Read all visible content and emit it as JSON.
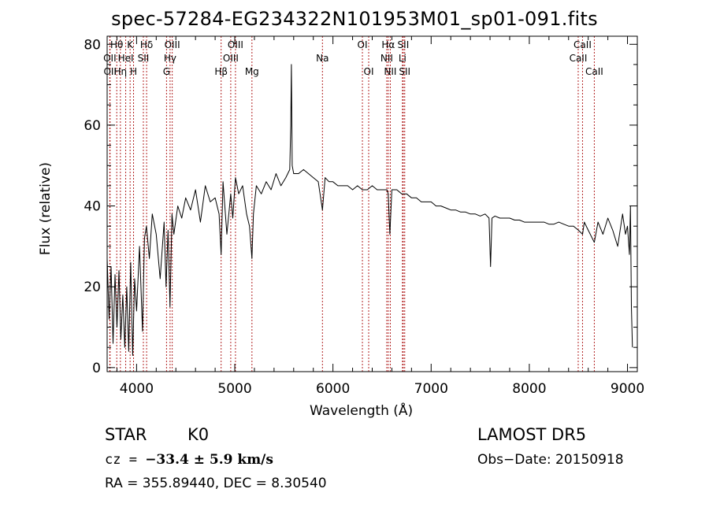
{
  "header": {
    "title": "spec-57284-EG234322N101953M01_sp01-091.fits"
  },
  "footer": {
    "object_class": "STAR",
    "subclass": "K0",
    "survey": "LAMOST DR5",
    "cz_label": "cz = ",
    "cz_value": "−33.4 ± 5.9 km/s",
    "obs_date": "Obs−Date: 20150918",
    "radec": "RA = 355.89440, DEC =   8.30540"
  },
  "colors": {
    "line_marker": "#b22222",
    "spectrum": "#000000",
    "axes": "#000000"
  },
  "chart_data": {
    "type": "line",
    "title": "spec-57284-EG234322N101953M01_sp01-091.fits",
    "xlabel": "Wavelength (Å)",
    "ylabel": "Flux (relative)",
    "xlim": [
      3700,
      9100
    ],
    "ylim": [
      -1,
      82
    ],
    "xticks": [
      4000,
      5000,
      6000,
      7000,
      8000,
      9000
    ],
    "yticks": [
      0,
      20,
      40,
      60,
      80
    ],
    "grid": false,
    "spectrum": {
      "x": [
        3700,
        3720,
        3740,
        3760,
        3780,
        3800,
        3820,
        3840,
        3860,
        3880,
        3900,
        3920,
        3940,
        3960,
        3980,
        4000,
        4030,
        4060,
        4080,
        4100,
        4130,
        4160,
        4200,
        4240,
        4280,
        4300,
        4320,
        4340,
        4360,
        4380,
        4420,
        4460,
        4500,
        4550,
        4600,
        4650,
        4700,
        4750,
        4800,
        4840,
        4861,
        4880,
        4920,
        4959,
        4980,
        5007,
        5040,
        5080,
        5120,
        5150,
        5175,
        5190,
        5220,
        5270,
        5320,
        5370,
        5420,
        5470,
        5520,
        5560,
        5570,
        5577,
        5585,
        5600,
        5650,
        5700,
        5750,
        5800,
        5850,
        5893,
        5920,
        5960,
        6000,
        6050,
        6100,
        6150,
        6200,
        6250,
        6300,
        6350,
        6400,
        6450,
        6500,
        6550,
        6563,
        6580,
        6600,
        6650,
        6700,
        6750,
        6800,
        6850,
        6900,
        6950,
        7000,
        7050,
        7100,
        7150,
        7200,
        7250,
        7300,
        7350,
        7400,
        7450,
        7500,
        7550,
        7590,
        7605,
        7620,
        7650,
        7700,
        7750,
        7800,
        7850,
        7900,
        7950,
        8000,
        8050,
        8100,
        8150,
        8200,
        8250,
        8300,
        8350,
        8400,
        8450,
        8500,
        8542,
        8560,
        8600,
        8662,
        8700,
        8750,
        8800,
        8850,
        8900,
        8950,
        8980,
        9000,
        9020,
        9030,
        9040,
        9050
      ],
      "y": [
        27,
        12,
        25,
        6,
        23,
        10,
        24,
        7,
        18,
        5,
        20,
        4,
        26,
        3,
        22,
        14,
        30,
        9,
        32,
        35,
        27,
        38,
        33,
        22,
        36,
        20,
        34,
        15,
        38,
        33,
        40,
        37,
        42,
        39,
        44,
        36,
        45,
        41,
        42,
        38,
        28,
        46,
        33,
        43,
        37,
        47,
        43,
        45,
        38,
        35,
        27,
        38,
        45,
        43,
        46,
        44,
        48,
        45,
        47,
        49,
        60,
        75,
        50,
        48,
        48,
        49,
        48,
        47,
        46,
        39,
        47,
        46,
        46,
        45,
        45,
        45,
        44,
        45,
        44,
        44,
        45,
        44,
        44,
        44,
        43,
        33,
        44,
        44,
        43,
        43,
        42,
        42,
        41,
        41,
        41,
        40,
        40,
        39.5,
        39,
        39,
        38.5,
        38.5,
        38,
        38,
        37.5,
        38,
        37,
        25,
        37,
        37.5,
        37,
        37,
        37,
        36.5,
        36.5,
        36,
        36,
        36,
        36,
        36,
        35.5,
        35.5,
        36,
        35.5,
        35,
        35,
        34,
        33,
        36,
        34,
        31,
        36,
        33,
        37,
        34,
        30,
        38,
        33,
        35,
        28,
        40,
        15,
        5
      ]
    },
    "lines": [
      {
        "label": "Hθ",
        "x": 3798,
        "row": 0
      },
      {
        "label": "OII",
        "x": 3727,
        "row": 1
      },
      {
        "label": "OII",
        "x": 3730,
        "row": 2
      },
      {
        "label": "Hη",
        "x": 3835,
        "row": 2
      },
      {
        "label": "HeI",
        "x": 3889,
        "row": 1
      },
      {
        "label": "K",
        "x": 3934,
        "row": 0
      },
      {
        "label": "H",
        "x": 3969,
        "row": 2
      },
      {
        "label": "SII",
        "x": 4069,
        "row": 1
      },
      {
        "label": "Hδ",
        "x": 4102,
        "row": 0
      },
      {
        "label": "OIII",
        "x": 4363,
        "row": 0
      },
      {
        "label": "Hγ",
        "x": 4341,
        "row": 1
      },
      {
        "label": "G",
        "x": 4305,
        "row": 2
      },
      {
        "label": "Hβ",
        "x": 4861,
        "row": 2
      },
      {
        "label": "OIII",
        "x": 5007,
        "row": 0
      },
      {
        "label": "OIII",
        "x": 4959,
        "row": 1
      },
      {
        "label": "Mg",
        "x": 5175,
        "row": 2
      },
      {
        "label": "Na",
        "x": 5893,
        "row": 1
      },
      {
        "label": "OI",
        "x": 6300,
        "row": 0
      },
      {
        "label": "OI",
        "x": 6364,
        "row": 2
      },
      {
        "label": "Hα",
        "x": 6563,
        "row": 0
      },
      {
        "label": "NII",
        "x": 6548,
        "row": 1
      },
      {
        "label": "NII",
        "x": 6584,
        "row": 2
      },
      {
        "label": "SII",
        "x": 6716,
        "row": 0
      },
      {
        "label": "Li",
        "x": 6708,
        "row": 1
      },
      {
        "label": "SII",
        "x": 6731,
        "row": 2
      },
      {
        "label": "CaII",
        "x": 8542,
        "row": 0
      },
      {
        "label": "CaII",
        "x": 8498,
        "row": 1
      },
      {
        "label": "CaII",
        "x": 8662,
        "row": 2
      }
    ]
  }
}
